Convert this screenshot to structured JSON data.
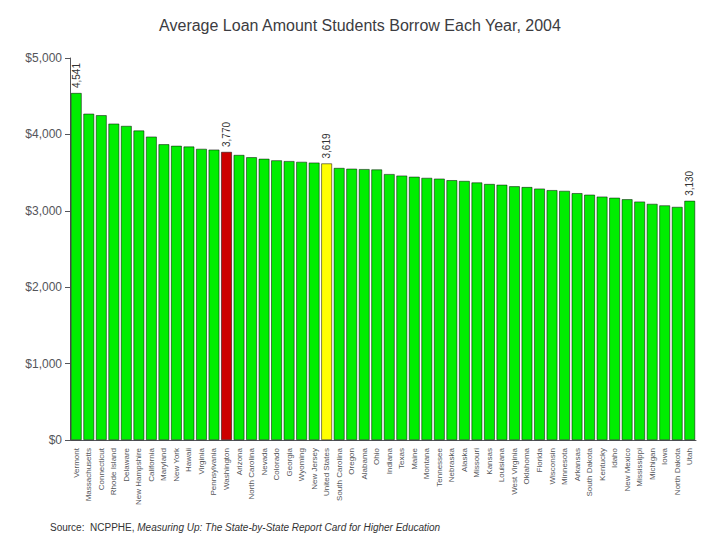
{
  "chart_data": {
    "type": "bar",
    "title": "Average Loan Amount Students Borrow Each Year, 2004",
    "source": "Source:  NCPPHE, ",
    "source_italic": "Measuring Up: The State-by-State Report Card for Higher Education",
    "categories": [
      "Vermont",
      "Massachusetts",
      "Connecticut",
      "Rhode Island",
      "Delaware",
      "New Hampshire",
      "California",
      "Maryland",
      "New York",
      "Hawaii",
      "Virginia",
      "Pennsylvania",
      "Washington",
      "Arizona",
      "North Carolina",
      "Nevada",
      "Colorado",
      "Georgia",
      "Wyoming",
      "New Jersey",
      "United States",
      "South Carolina",
      "Oregon",
      "Alabama",
      "Ohio",
      "Indiana",
      "Texas",
      "Maine",
      "Montana",
      "Tennessee",
      "Nebraska",
      "Alaska",
      "Missouri",
      "Kansas",
      "Louisiana",
      "West Virginia",
      "Oklahoma",
      "Florida",
      "Wisconsin",
      "Minnesota",
      "Arkansas",
      "South Dakota",
      "Kentucky",
      "Idaho",
      "New Mexico",
      "Mississippi",
      "Michigan",
      "Iowa",
      "North Dakota",
      "Utah"
    ],
    "values": [
      4541,
      4270,
      4250,
      4140,
      4110,
      4050,
      3970,
      3870,
      3850,
      3840,
      3810,
      3800,
      3770,
      3730,
      3700,
      3680,
      3660,
      3650,
      3640,
      3630,
      3619,
      3560,
      3550,
      3545,
      3540,
      3480,
      3460,
      3445,
      3430,
      3420,
      3400,
      3390,
      3370,
      3350,
      3340,
      3320,
      3310,
      3290,
      3270,
      3260,
      3230,
      3210,
      3185,
      3170,
      3150,
      3120,
      3090,
      3070,
      3050,
      3130
    ],
    "colors": [
      "#00ee00",
      "#00ee00",
      "#00ee00",
      "#00ee00",
      "#00ee00",
      "#00ee00",
      "#00ee00",
      "#00ee00",
      "#00ee00",
      "#00ee00",
      "#00ee00",
      "#00ee00",
      "#cc0000",
      "#00ee00",
      "#00ee00",
      "#00ee00",
      "#00ee00",
      "#00ee00",
      "#00ee00",
      "#00ee00",
      "#ffff00",
      "#00ee00",
      "#00ee00",
      "#00ee00",
      "#00ee00",
      "#00ee00",
      "#00ee00",
      "#00ee00",
      "#00ee00",
      "#00ee00",
      "#00ee00",
      "#00ee00",
      "#00ee00",
      "#00ee00",
      "#00ee00",
      "#00ee00",
      "#00ee00",
      "#00ee00",
      "#00ee00",
      "#00ee00",
      "#00ee00",
      "#00ee00",
      "#00ee00",
      "#00ee00",
      "#00ee00",
      "#00ee00",
      "#00ee00",
      "#00ee00",
      "#00ee00",
      "#00ee00"
    ],
    "annotations": [
      {
        "category": "Vermont",
        "text": "4,541"
      },
      {
        "category": "Washington",
        "text": "3,770"
      },
      {
        "category": "United States",
        "text": "3,619"
      },
      {
        "category": "Utah",
        "text": "3,130"
      }
    ],
    "ylim": [
      0,
      5000
    ],
    "yticks": [
      {
        "value": 0,
        "label": "$0"
      },
      {
        "value": 1000,
        "label": "$1,000"
      },
      {
        "value": 2000,
        "label": "$2,000"
      },
      {
        "value": 3000,
        "label": "$3,000"
      },
      {
        "value": 4000,
        "label": "$4,000"
      },
      {
        "value": 5000,
        "label": "$5,000"
      }
    ],
    "grid": false
  }
}
